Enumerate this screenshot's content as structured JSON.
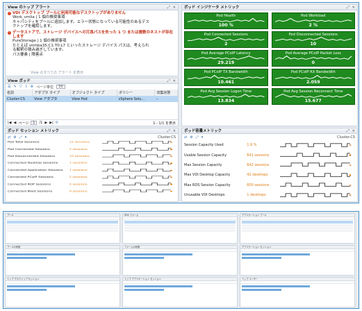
{
  "colors": {
    "tile_green": "#1f8a1f",
    "value_orange": "#e07b12",
    "frame_blue": "#4a90c8",
    "selection_blue": "#b9d7f3"
  },
  "alerts_panel": {
    "title": "View のトップ アラート",
    "items": [
      {
        "title": "VDI デスクトップ プールに利用可能なデスクトップがありません",
        "lines": [
          "Work_vmlia | 1 個の推奨事項",
          "キャパシティをプールに追加します。エラー状態になっている可能性のあるデス",
          "クトップを確認します。"
        ]
      },
      {
        "title": "データストアで、ストレージ デバイスへの冗長パスを失った 1 つ または複数のネストが存在します",
        "lines": [
          "PureStorage | 1 個の推奨事項",
          "たとえば vmhba35:C1:T0:L7 といったストレージ デバイス パスは、考えられ",
          "る解釈の積み過ぎしています。",
          "パス要素 | 障害点"
        ]
      }
    ],
    "footer": "View のすべての アラート を表示"
  },
  "pods_panel": {
    "title": "View ポッド",
    "page_size_label": "ページ単位",
    "page_size": "50",
    "columns": [
      "名前",
      "アダプタ タイプ",
      "オブジェクト タイプ",
      "ポリシー",
      "収集状態"
    ],
    "rows": [
      {
        "name": "Cluster-CS",
        "adapter": "View アダプタ",
        "object": "View Pod",
        "policy": "vSphere Solu..."
      }
    ],
    "pager": {
      "page_label": "ページ",
      "page": "1",
      "of_pages": "/1",
      "range": "1 - 1/1 を表示"
    }
  },
  "indicators_panel": {
    "title": "ポッド インジケータ メトリック",
    "tiles": [
      {
        "label": "Pod Health",
        "value": "100 %"
      },
      {
        "label": "Pod Workload",
        "value": "2 %"
      },
      {
        "label": "Pod Connected Sessions",
        "value": "2"
      },
      {
        "label": "Pod Disconnected Sessions",
        "value": "10"
      },
      {
        "label": "Pod Average PCoIP Latency",
        "value": "29.219"
      },
      {
        "label": "Pod Average PCoIP Packet Loss",
        "value": "0"
      },
      {
        "label": "Pod PCoIP TX Bandwidth",
        "value": "10.461"
      },
      {
        "label": "Pod PCoIP RX Bandwidth",
        "value": "2.059"
      },
      {
        "label": "Pod Avg Session Logon Time",
        "value": "13.834"
      },
      {
        "label": "Pod Avg Session Reconnect Time",
        "value": "15.677"
      }
    ]
  },
  "session_panel": {
    "title": "ポッド セッション メトリック",
    "context": "Cluster-CS",
    "rows": [
      {
        "label": "Pod Total Sessions",
        "value": "12 sessions"
      },
      {
        "label": "Pod Connected Sessions",
        "value": "2 sessions"
      },
      {
        "label": "Pod Disconnected Sessions",
        "value": "10 sessions"
      },
      {
        "label": "Connected Desktop Sessions",
        "value": "1 sessions"
      },
      {
        "label": "Connected Application Sessions",
        "value": "1 sessions"
      },
      {
        "label": "Connected PCoIP Sessions",
        "value": "2 sessions"
      },
      {
        "label": "Connected RDP Sessions",
        "value": "0 sessions"
      },
      {
        "label": "Connected Blast Sessions",
        "value": "0 sessions"
      }
    ]
  },
  "capacity_panel": {
    "title": "ポッド容量メトリック",
    "context": "Cluster-CS",
    "rows": [
      {
        "label": "Session Capacity Used",
        "value": "1.9 %"
      },
      {
        "label": "Usable Session Capacity",
        "value": "641 sessions"
      },
      {
        "label": "Max Session Capacity",
        "value": "642 sessions"
      },
      {
        "label": "Max VDI Desktop Capacity",
        "value": "42 desktops"
      },
      {
        "label": "Max RDS Session Capacity",
        "value": "600 sessions"
      },
      {
        "label": "Unusable VDI Desktops",
        "value": "1 desktops"
      }
    ]
  },
  "lower_dashboard": {
    "top_panels": [
      "プール",
      "RDS ファーム",
      "アプリケーション プール"
    ],
    "mid_panels": [
      "プールの状態",
      "ファームの状態",
      "アプリケーション セッション"
    ],
    "bottom_panels": [
      "トップ デスクトップ セッション",
      "トップ アプリケーション セッション",
      "トップ ユーザー"
    ]
  }
}
